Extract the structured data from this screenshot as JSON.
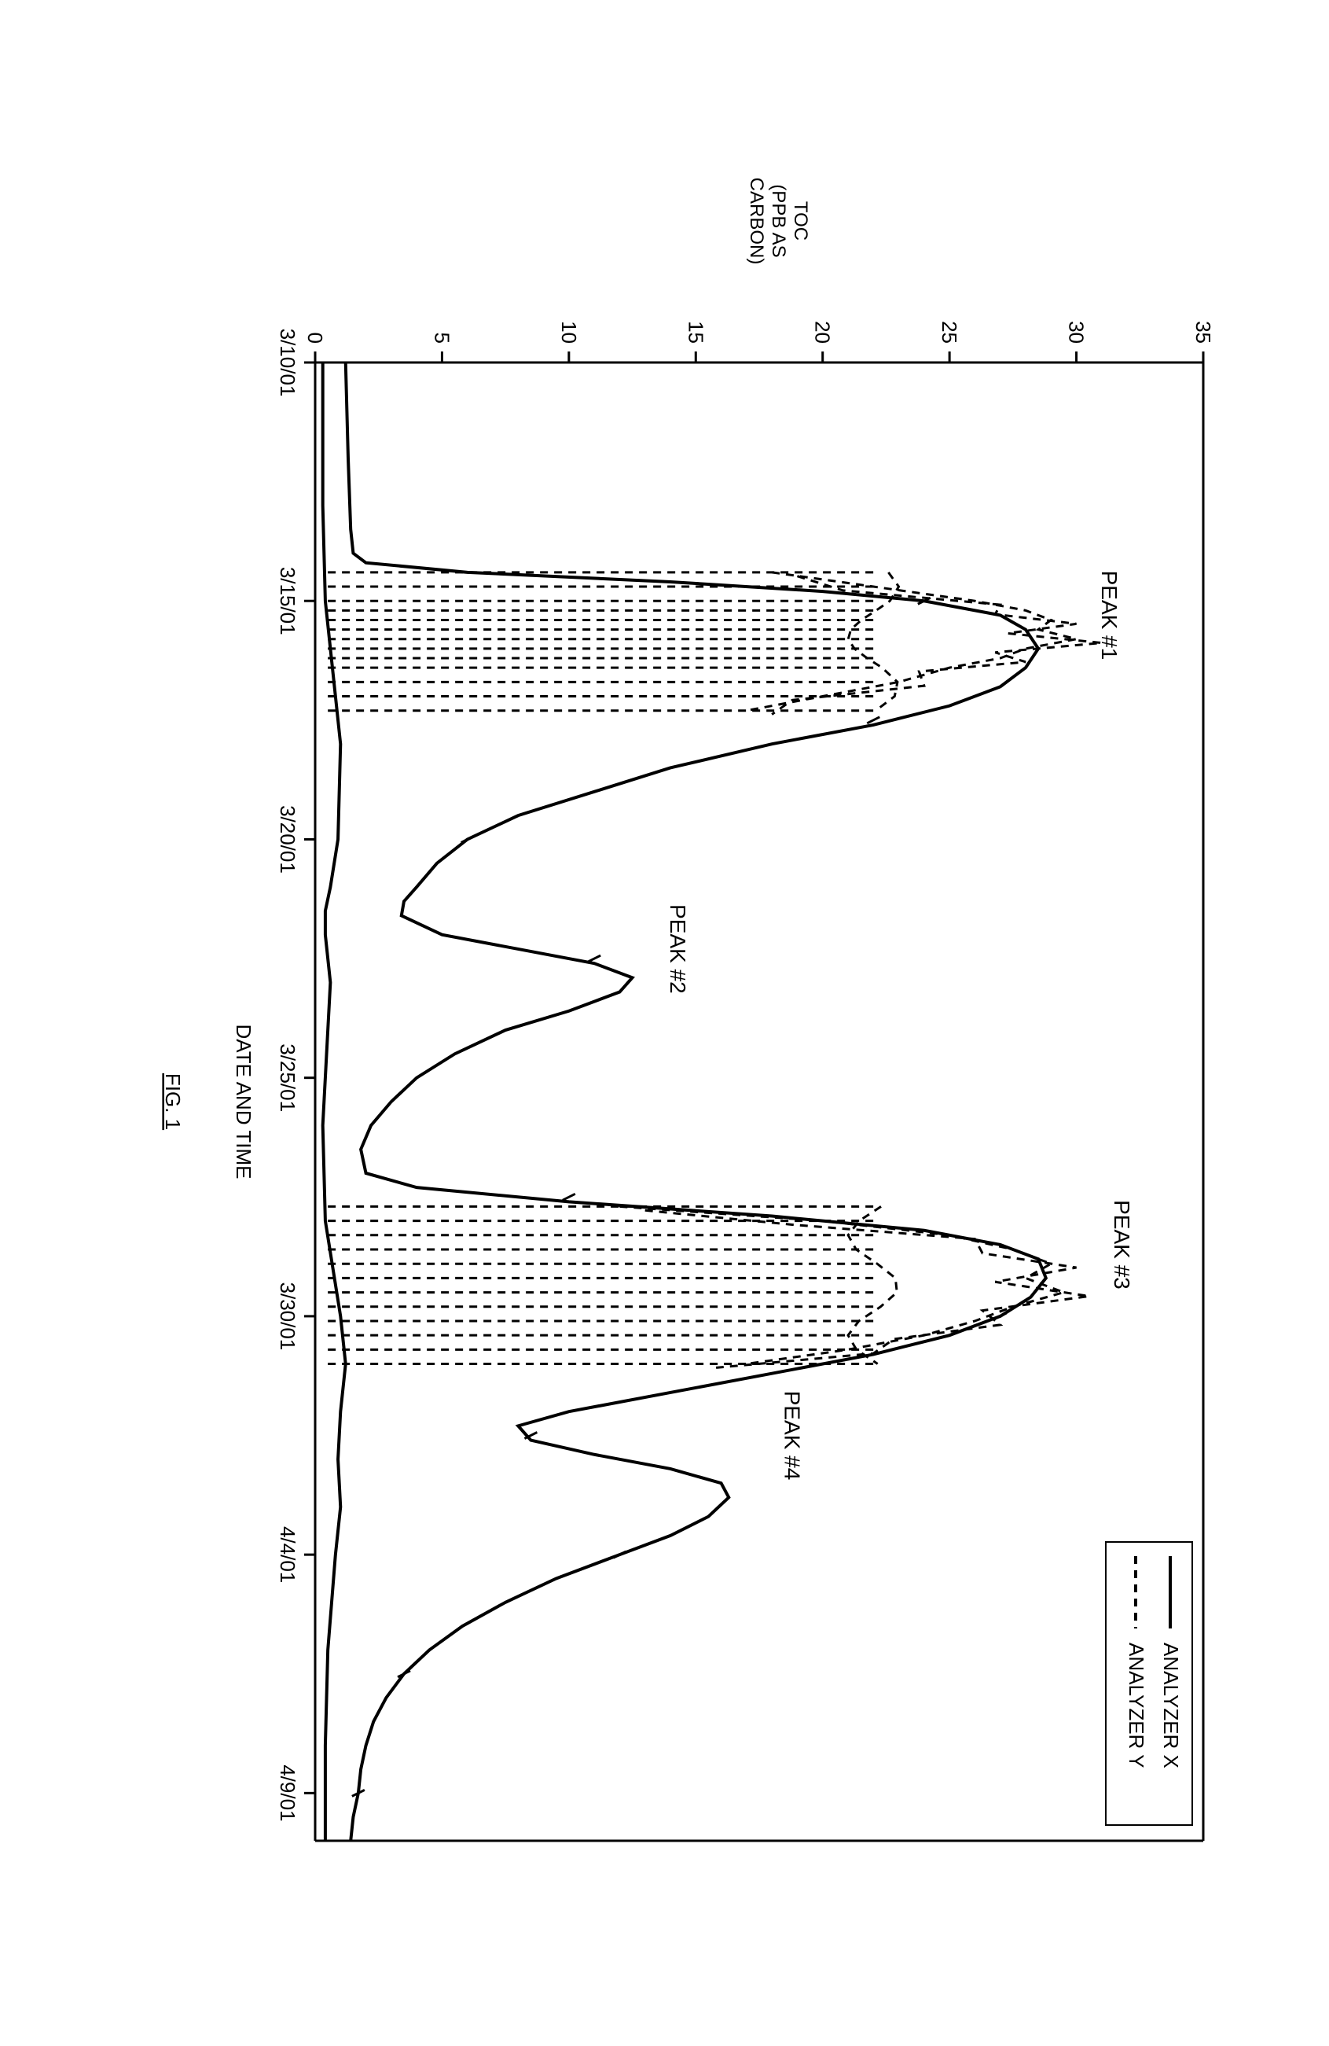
{
  "figure_label": "FIG. 1",
  "chart": {
    "type": "line",
    "background_color": "#ffffff",
    "axis_color": "#000000",
    "line_width_series": 4,
    "line_width_axis": 3,
    "x_axis": {
      "label": "DATE AND TIME",
      "label_fontsize": 28,
      "ticks": [
        "3/10/01",
        "3/15/01",
        "3/20/01",
        "3/25/01",
        "3/30/01",
        "4/4/01",
        "4/9/01"
      ],
      "tick_positions_days": [
        0,
        5,
        10,
        15,
        20,
        25,
        30
      ],
      "range_days": [
        0,
        31
      ]
    },
    "y_axis": {
      "label_line1": "TOC",
      "label_line2": "(PPB AS",
      "label_line3": "CARBON)",
      "label_fontsize": 24,
      "ticks": [
        0,
        5,
        10,
        15,
        20,
        25,
        30,
        35
      ],
      "range": [
        0,
        35
      ]
    },
    "legend": {
      "entries": [
        {
          "label": "ANALYZER X",
          "style": "solid",
          "color": "#000000"
        },
        {
          "label": "ANALYZER Y",
          "style": "dashed",
          "color": "#000000",
          "dash": "10,8"
        }
      ]
    },
    "annotations": [
      {
        "text": "PEAK #1",
        "x_day": 5.3,
        "y": 31
      },
      {
        "text": "PEAK #2",
        "x_day": 12.3,
        "y": 14
      },
      {
        "text": "PEAK #3",
        "x_day": 18.5,
        "y": 31.5
      },
      {
        "text": "PEAK #4",
        "x_day": 22.5,
        "y": 18.5
      }
    ],
    "series_X_upper": {
      "color": "#000000",
      "style": "solid",
      "points": [
        [
          0,
          1.2
        ],
        [
          2,
          1.3
        ],
        [
          3.5,
          1.4
        ],
        [
          4.0,
          1.5
        ],
        [
          4.2,
          2
        ],
        [
          4.4,
          6
        ],
        [
          4.6,
          14
        ],
        [
          4.8,
          20
        ],
        [
          5.0,
          24
        ],
        [
          5.3,
          27
        ],
        [
          5.6,
          28
        ],
        [
          6.0,
          28.5
        ],
        [
          6.4,
          28
        ],
        [
          6.8,
          27
        ],
        [
          7.2,
          25
        ],
        [
          7.6,
          22
        ],
        [
          8.0,
          18
        ],
        [
          8.5,
          14
        ],
        [
          9.0,
          11
        ],
        [
          9.5,
          8
        ],
        [
          10.0,
          6
        ],
        [
          10.5,
          4.8
        ],
        [
          11.0,
          4
        ],
        [
          11.3,
          3.5
        ],
        [
          11.6,
          3.4
        ],
        [
          12.0,
          5
        ],
        [
          12.3,
          8
        ],
        [
          12.6,
          11
        ],
        [
          12.9,
          12.5
        ],
        [
          13.2,
          12
        ],
        [
          13.6,
          10
        ],
        [
          14.0,
          7.5
        ],
        [
          14.5,
          5.5
        ],
        [
          15.0,
          4
        ],
        [
          15.5,
          3
        ],
        [
          16.0,
          2.2
        ],
        [
          16.5,
          1.8
        ],
        [
          17.0,
          2
        ],
        [
          17.3,
          4
        ],
        [
          17.6,
          10
        ],
        [
          17.9,
          18
        ],
        [
          18.2,
          24
        ],
        [
          18.5,
          27
        ],
        [
          18.8,
          28.5
        ],
        [
          19.2,
          28.8
        ],
        [
          19.6,
          28.2
        ],
        [
          20.0,
          27
        ],
        [
          20.4,
          25
        ],
        [
          20.8,
          22
        ],
        [
          21.2,
          18
        ],
        [
          21.6,
          14
        ],
        [
          22.0,
          10
        ],
        [
          22.3,
          8
        ],
        [
          22.6,
          8.5
        ],
        [
          22.9,
          11
        ],
        [
          23.2,
          14
        ],
        [
          23.5,
          16
        ],
        [
          23.8,
          16.3
        ],
        [
          24.2,
          15.5
        ],
        [
          24.6,
          14
        ],
        [
          25.0,
          12
        ],
        [
          25.5,
          9.5
        ],
        [
          26.0,
          7.5
        ],
        [
          26.5,
          5.8
        ],
        [
          27.0,
          4.5
        ],
        [
          27.5,
          3.5
        ],
        [
          28.0,
          2.8
        ],
        [
          28.5,
          2.3
        ],
        [
          29.0,
          2.0
        ],
        [
          29.5,
          1.8
        ],
        [
          30.0,
          1.7
        ],
        [
          30.5,
          1.5
        ],
        [
          31.0,
          1.4
        ]
      ]
    },
    "series_X_lower": {
      "color": "#000000",
      "style": "solid",
      "points": [
        [
          0,
          0.3
        ],
        [
          3,
          0.3
        ],
        [
          5,
          0.4
        ],
        [
          7,
          0.8
        ],
        [
          8,
          1.0
        ],
        [
          10,
          0.9
        ],
        [
          11,
          0.6
        ],
        [
          11.5,
          0.4
        ],
        [
          12,
          0.4
        ],
        [
          13,
          0.6
        ],
        [
          14,
          0.5
        ],
        [
          16,
          0.3
        ],
        [
          18,
          0.4
        ],
        [
          19,
          0.7
        ],
        [
          20,
          1.0
        ],
        [
          21,
          1.2
        ],
        [
          22,
          1.0
        ],
        [
          23,
          0.9
        ],
        [
          24,
          1.0
        ],
        [
          25,
          0.8
        ],
        [
          27,
          0.5
        ],
        [
          29,
          0.4
        ],
        [
          31,
          0.4
        ]
      ]
    },
    "series_Y_peak1_cluster": {
      "color": "#000000",
      "style": "dashed",
      "dash": "10,8",
      "verticals_from_baseline": [
        {
          "x": 4.4,
          "y": 18
        },
        {
          "x": 4.7,
          "y": 22
        },
        {
          "x": 5.0,
          "y": 26
        },
        {
          "x": 5.2,
          "y": 28
        },
        {
          "x": 5.4,
          "y": 29
        },
        {
          "x": 5.6,
          "y": 28.5
        },
        {
          "x": 5.8,
          "y": 30
        },
        {
          "x": 6.0,
          "y": 28
        },
        {
          "x": 6.2,
          "y": 27
        },
        {
          "x": 6.4,
          "y": 25
        },
        {
          "x": 6.7,
          "y": 23
        },
        {
          "x": 7.0,
          "y": 20
        },
        {
          "x": 7.3,
          "y": 17
        }
      ],
      "mid_level": 22
    },
    "series_Y_peak3_cluster": {
      "color": "#000000",
      "style": "dashed",
      "dash": "10,8",
      "verticals_from_baseline": [
        {
          "x": 17.7,
          "y": 12
        },
        {
          "x": 18.0,
          "y": 20
        },
        {
          "x": 18.3,
          "y": 25
        },
        {
          "x": 18.6,
          "y": 27.5
        },
        {
          "x": 18.9,
          "y": 29
        },
        {
          "x": 19.2,
          "y": 28
        },
        {
          "x": 19.5,
          "y": 29.5
        },
        {
          "x": 19.8,
          "y": 27.5
        },
        {
          "x": 20.1,
          "y": 26
        },
        {
          "x": 20.4,
          "y": 24
        },
        {
          "x": 20.7,
          "y": 21
        },
        {
          "x": 21.0,
          "y": 17
        }
      ],
      "mid_level": 22
    }
  }
}
